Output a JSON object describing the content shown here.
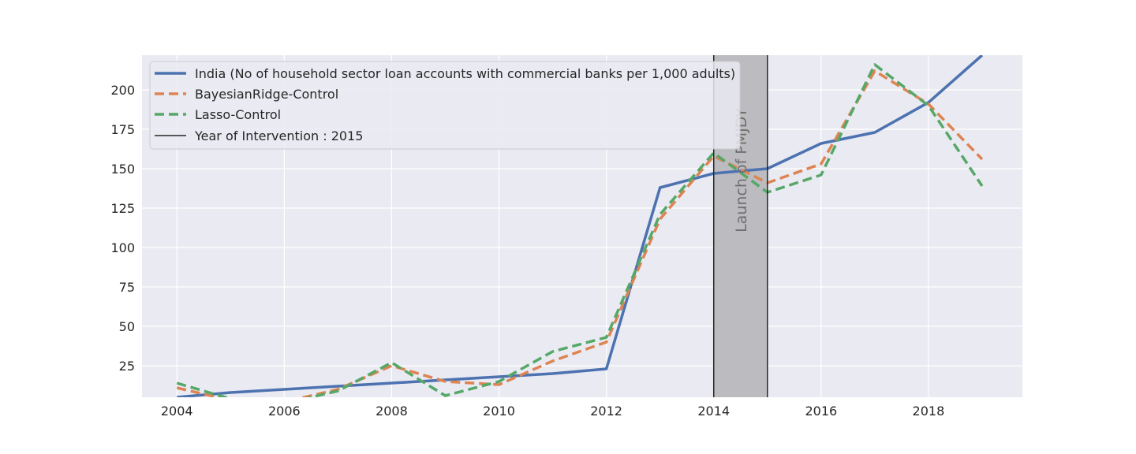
{
  "chart_data": {
    "type": "line",
    "title": "",
    "xlabel": "",
    "ylabel": "",
    "xlim": [
      2003.35,
      2019.75
    ],
    "ylim": [
      5,
      222
    ],
    "x_ticks": [
      2004,
      2006,
      2008,
      2010,
      2012,
      2014,
      2016,
      2018
    ],
    "y_ticks": [
      25,
      50,
      75,
      100,
      125,
      150,
      175,
      200
    ],
    "grid": true,
    "legend_position": "top-left",
    "series": [
      {
        "name": "India (No of household sector loan accounts with commercial banks per 1,000 adults)",
        "color": "#4c72b0",
        "dash": "solid",
        "x": [
          2004,
          2005,
          2006,
          2007,
          2008,
          2009,
          2010,
          2011,
          2012,
          2013,
          2014,
          2015,
          2016,
          2017,
          2018,
          2019
        ],
        "y": [
          5,
          8,
          10,
          12,
          14,
          16,
          18,
          20,
          23,
          138,
          147,
          150,
          166,
          173,
          192,
          222
        ]
      },
      {
        "name": "BayesianRidge-Control",
        "color": "#dd8452",
        "dash": "dashed",
        "x": [
          2004,
          2005,
          2006,
          2007,
          2008,
          2009,
          2010,
          2011,
          2012,
          2013,
          2014,
          2015,
          2016,
          2017,
          2018,
          2019
        ],
        "y": [
          11,
          3,
          2,
          10,
          25,
          15,
          13,
          28,
          40,
          118,
          158,
          141,
          153,
          212,
          191,
          156
        ]
      },
      {
        "name": "Lasso-Control",
        "color": "#55a868",
        "dash": "dashed",
        "x": [
          2004,
          2005,
          2006,
          2007,
          2008,
          2009,
          2010,
          2011,
          2012,
          2013,
          2014,
          2015,
          2016,
          2017,
          2018,
          2019
        ],
        "y": [
          14,
          4,
          1,
          9,
          27,
          6,
          15,
          34,
          43,
          121,
          160,
          135,
          146,
          216,
          190,
          139
        ]
      }
    ],
    "intervention": {
      "name": "Year of Intervention : 2015",
      "x": 2015,
      "color": "#262626"
    },
    "shaded_region": {
      "x_start": 2014,
      "x_end": 2015,
      "color": "#bbbbc0",
      "label": "Launch of PMJDY"
    }
  }
}
